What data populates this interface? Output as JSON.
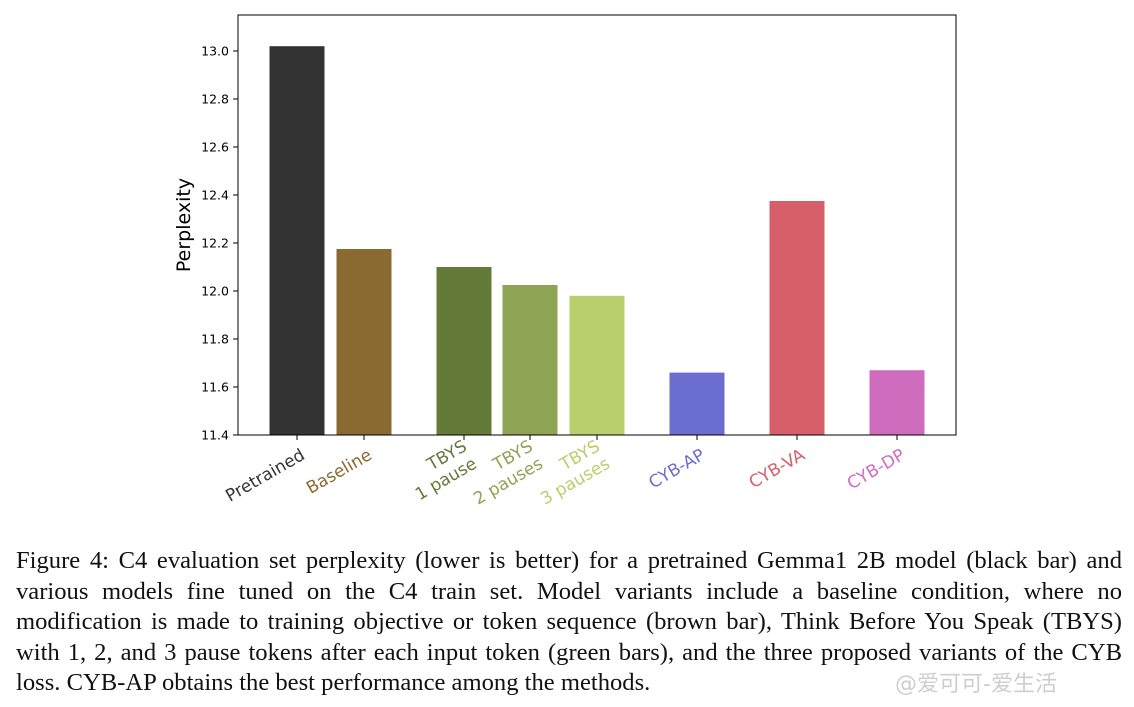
{
  "chart_data": {
    "type": "bar",
    "ylabel": "Perplexity",
    "xlabel": "",
    "ylim": [
      11.4,
      13.15
    ],
    "yticks": [
      "11.4",
      "11.6",
      "11.8",
      "12.0",
      "12.2",
      "12.4",
      "12.6",
      "12.8",
      "13.0"
    ],
    "grid": false,
    "categories": [
      {
        "label": "Pretrained",
        "value": 13.02,
        "color": "#333333"
      },
      {
        "label": "Baseline",
        "value": 12.175,
        "color": "#8b6a31"
      },
      {
        "label": "TBYS\n1 pause",
        "value": 12.1,
        "color": "#647a39"
      },
      {
        "label": "TBYS\n2 pauses",
        "value": 12.025,
        "color": "#8ea353"
      },
      {
        "label": "TBYS\n3 pauses",
        "value": 11.98,
        "color": "#b9cf6b"
      },
      {
        "label": "CYB-AP",
        "value": 11.66,
        "color": "#6b6ecf"
      },
      {
        "label": "CYB-VA",
        "value": 12.375,
        "color": "#d75f69"
      },
      {
        "label": "CYB-DP",
        "value": 11.67,
        "color": "#ce6dbd"
      }
    ]
  },
  "caption": "Figure 4: C4 evaluation set perplexity (lower is better) for a pretrained Gemma1 2B model (black bar) and various models fine tuned on the C4 train set. Model variants include a baseline condition, where no modification is made to training objective or token sequence (brown bar), Think Before You Speak (TBYS) with 1, 2, and 3 pause tokens after each input token (green bars), and the three proposed variants of the CYB loss. CYB-AP obtains the best performance among the methods.",
  "watermark": "@爱可可-爱生活"
}
